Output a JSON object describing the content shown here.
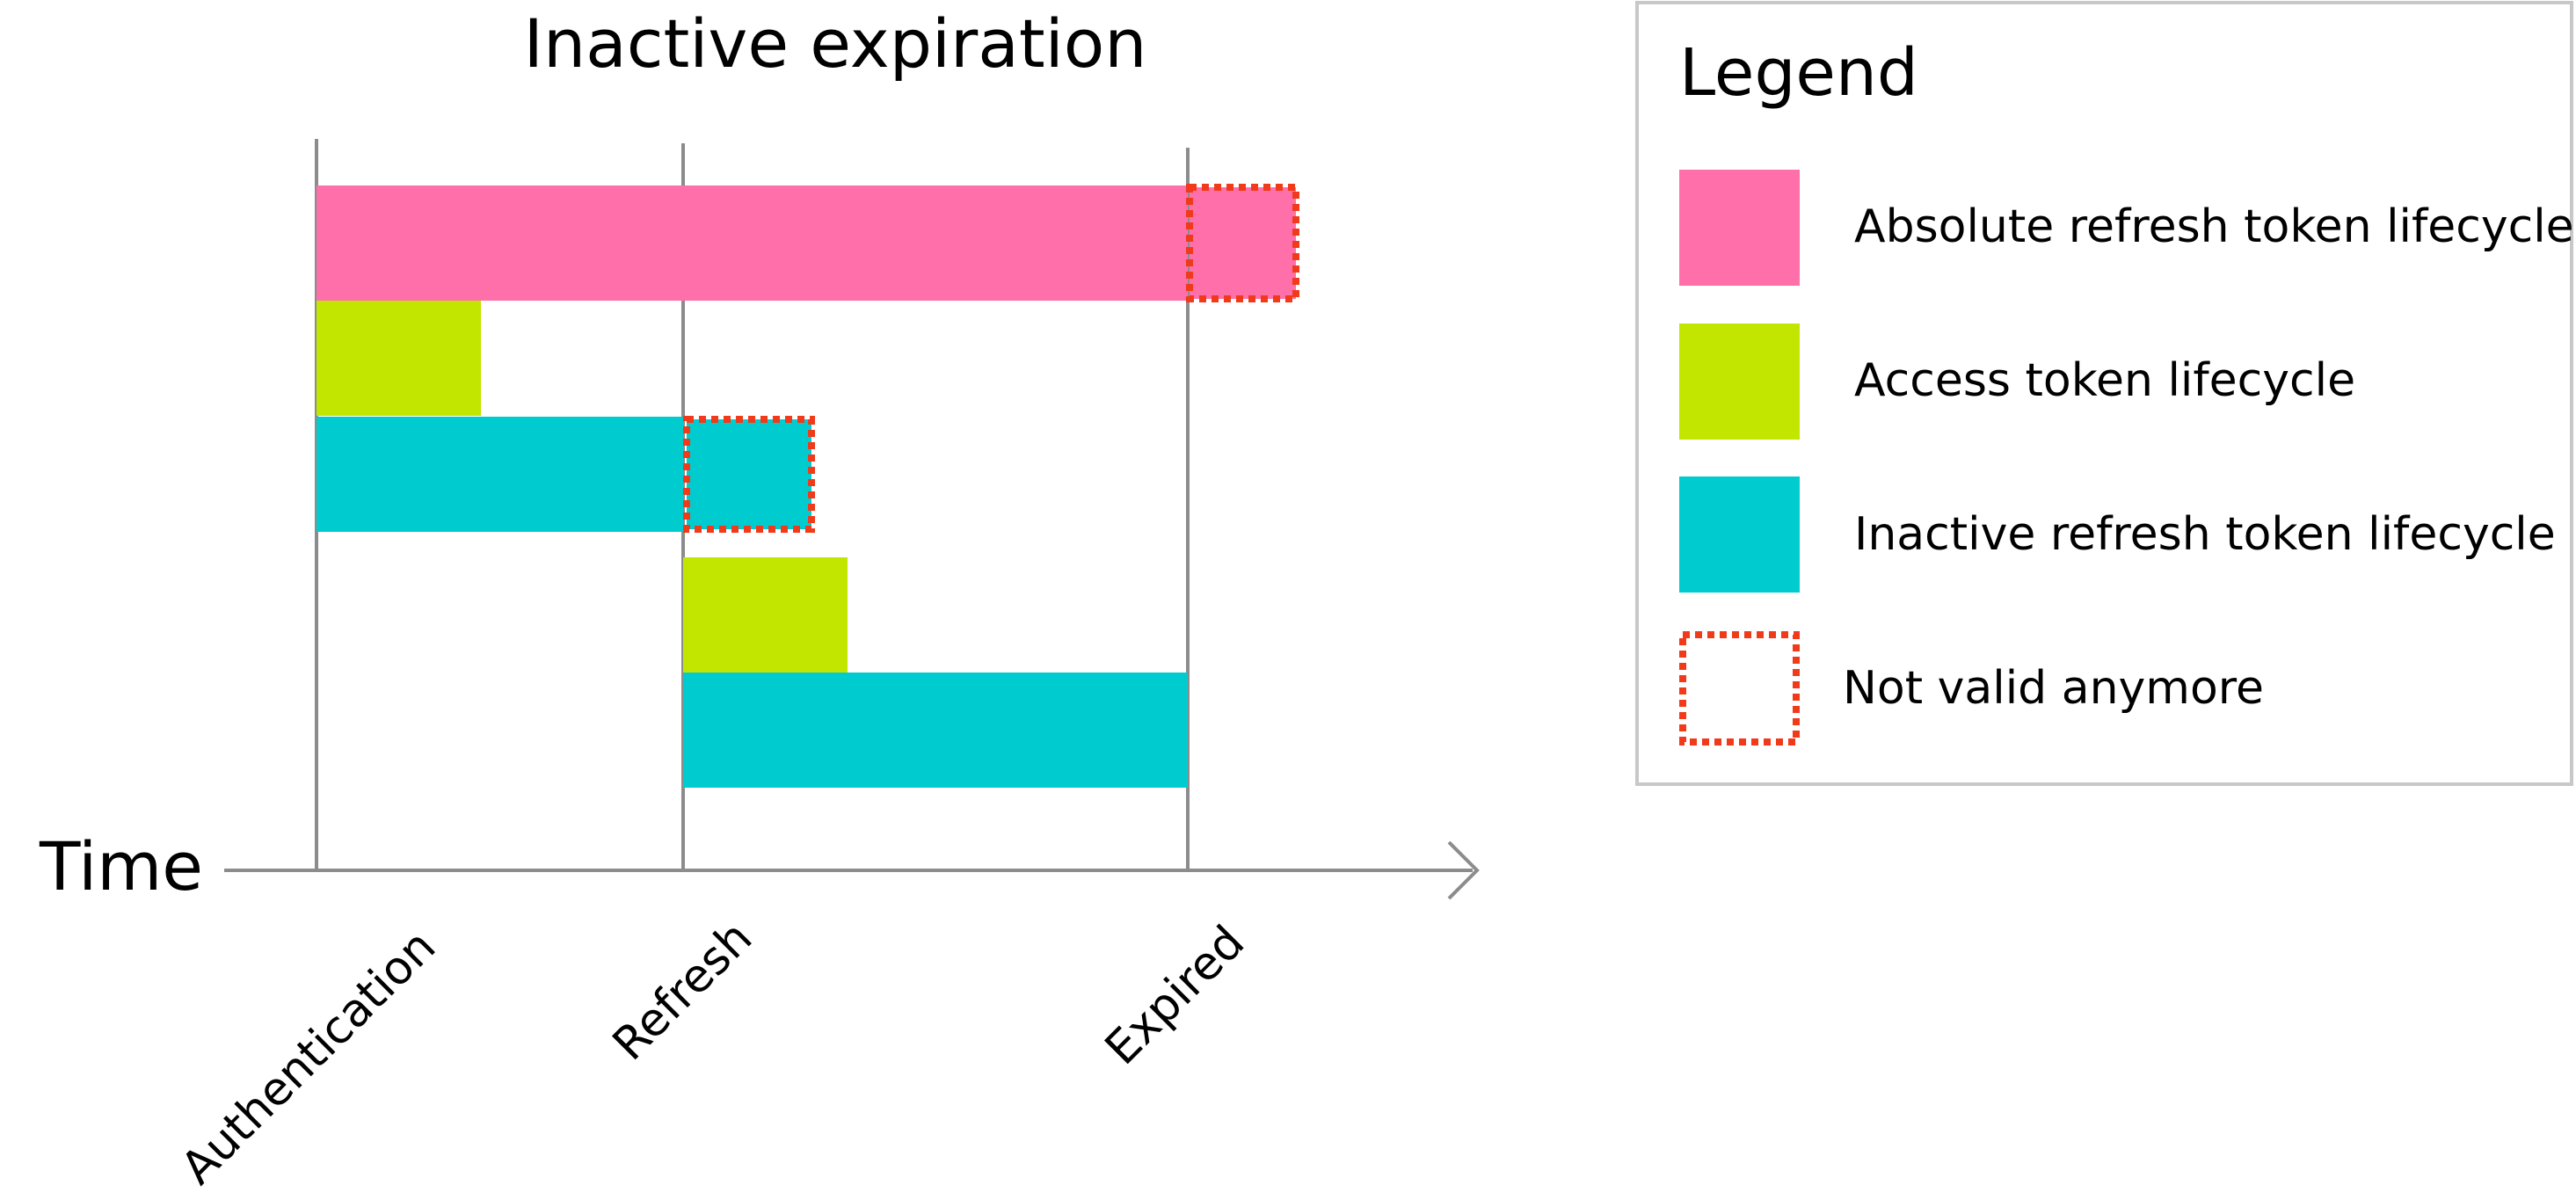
{
  "diagram": {
    "title": "Inactive expiration",
    "axis_label": "Time",
    "events": [
      "Authentication",
      "Refresh",
      "Expired"
    ]
  },
  "legend": {
    "title": "Legend",
    "items": [
      {
        "label": "Absolute refresh token lifecycle",
        "color": "#ff6fa9",
        "style": "solid"
      },
      {
        "label": "Access token lifecycle",
        "color": "#c2e600",
        "style": "solid"
      },
      {
        "label": "Inactive refresh token lifecycle",
        "color": "#00ccd0",
        "style": "solid"
      },
      {
        "label": "Not valid anymore",
        "color": "#f03a1a",
        "style": "dotted-outline"
      }
    ]
  },
  "colors": {
    "absolute": "#ff6fa9",
    "access": "#c2e600",
    "inactive": "#00ccd0",
    "invalid": "#f03a1a",
    "axis": "#8c8c8c",
    "legend_border": "#c8c8c8"
  }
}
